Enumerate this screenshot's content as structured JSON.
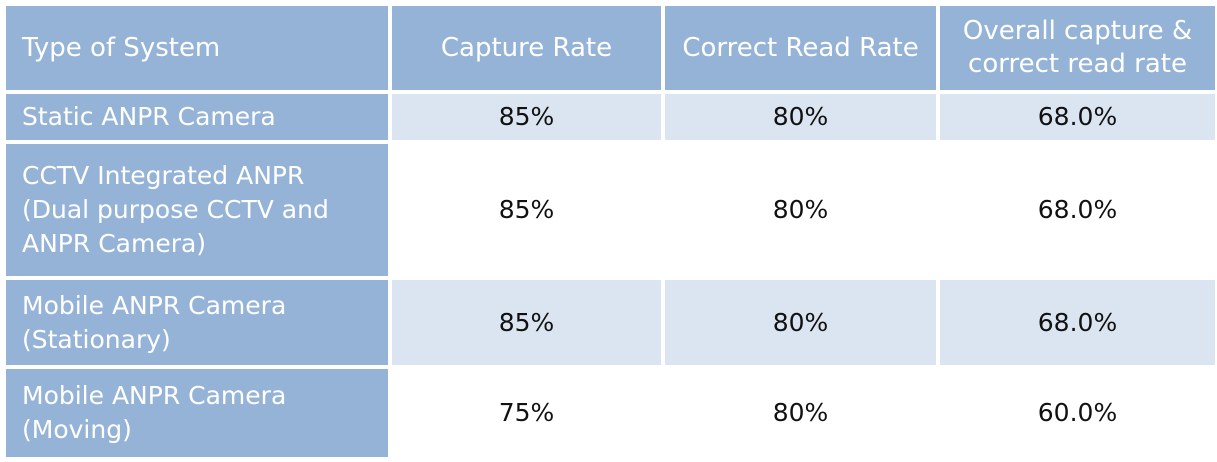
{
  "table": {
    "headers": [
      "Type of System",
      "Capture Rate",
      "Correct Read Rate",
      "Overall capture & correct read rate"
    ],
    "rows": [
      {
        "system": "Static ANPR Camera",
        "capture_rate": "85%",
        "correct_read_rate": "80%",
        "overall_rate": "68.0%"
      },
      {
        "system": "CCTV Integrated ANPR (Dual purpose CCTV and ANPR Camera)",
        "capture_rate": "85%",
        "correct_read_rate": "80%",
        "overall_rate": "68.0%"
      },
      {
        "system": "Mobile ANPR Camera (Stationary)",
        "capture_rate": "85%",
        "correct_read_rate": "80%",
        "overall_rate": "68.0%"
      },
      {
        "system": "Mobile ANPR Camera (Moving)",
        "capture_rate": "75%",
        "correct_read_rate": "80%",
        "overall_rate": "60.0%"
      }
    ]
  },
  "colors": {
    "header_fill": "#95b3d7",
    "shaded_row_fill": "#dbe5f1",
    "plain_row_fill": "#ffffff",
    "header_text": "#ffffff"
  }
}
